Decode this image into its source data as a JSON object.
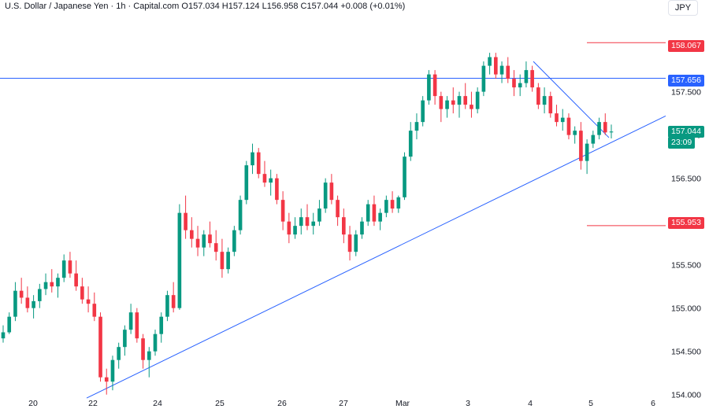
{
  "header": {
    "symbol": "U.S. Dollar / Japanese Yen · 1h · Capital.com",
    "o_label": "O",
    "open": "157.034",
    "h_label": "H",
    "high": "157.124",
    "l_label": "L",
    "low": "156.958",
    "c_label": "C",
    "close": "157.044",
    "change": "+0.008 (+0.01%)"
  },
  "currency_badge": "JPY",
  "colors": {
    "up": "#089981",
    "down": "#f23645",
    "trendline": "#2962ff",
    "hline": "#2962ff",
    "level_red": "#f23645",
    "axis_text": "#131722"
  },
  "price_labels": {
    "resistance_top": "158.067",
    "horizontal": "157.656",
    "current_price": "157.044",
    "countdown": "23:09",
    "support": "155.953"
  },
  "chart_data": {
    "type": "candlestick",
    "y_ticks": [
      "154.000",
      "154.500",
      "155.000",
      "155.500",
      "156.000",
      "156.500",
      "157.000",
      "157.500",
      "158.000"
    ],
    "ylim": [
      153.97,
      158.56
    ],
    "x_ticks": [
      "20",
      "22",
      "24",
      "25",
      "26",
      "27",
      "Mar",
      "3",
      "4",
      "5",
      "6"
    ],
    "grid": false,
    "series_ohlc": [
      [
        154.65,
        154.8,
        154.6,
        154.72
      ],
      [
        154.72,
        154.95,
        154.7,
        154.9
      ],
      [
        154.9,
        155.3,
        154.85,
        155.2
      ],
      [
        155.2,
        155.35,
        155.05,
        155.12
      ],
      [
        155.12,
        155.25,
        154.95,
        155.0
      ],
      [
        155.0,
        155.15,
        154.88,
        155.08
      ],
      [
        155.08,
        155.28,
        155.0,
        155.22
      ],
      [
        155.22,
        155.4,
        155.15,
        155.3
      ],
      [
        155.3,
        155.45,
        155.18,
        155.25
      ],
      [
        155.25,
        155.4,
        155.12,
        155.35
      ],
      [
        155.35,
        155.62,
        155.3,
        155.55
      ],
      [
        155.55,
        155.65,
        155.35,
        155.4
      ],
      [
        155.4,
        155.55,
        155.2,
        155.25
      ],
      [
        155.25,
        155.35,
        155.05,
        155.1
      ],
      [
        155.1,
        155.25,
        154.95,
        155.05
      ],
      [
        155.05,
        155.18,
        154.85,
        154.9
      ],
      [
        154.9,
        154.95,
        154.15,
        154.2
      ],
      [
        154.2,
        154.3,
        154.0,
        154.15
      ],
      [
        154.15,
        154.45,
        154.05,
        154.4
      ],
      [
        154.4,
        154.6,
        154.3,
        154.55
      ],
      [
        154.55,
        154.8,
        154.45,
        154.75
      ],
      [
        154.75,
        155.05,
        154.7,
        154.95
      ],
      [
        154.95,
        155.0,
        154.6,
        154.65
      ],
      [
        154.65,
        154.7,
        154.3,
        154.4
      ],
      [
        154.4,
        154.55,
        154.2,
        154.5
      ],
      [
        154.5,
        154.75,
        154.45,
        154.7
      ],
      [
        154.7,
        154.95,
        154.6,
        154.9
      ],
      [
        154.9,
        155.2,
        154.85,
        155.15
      ],
      [
        155.15,
        155.3,
        154.95,
        155.0
      ],
      [
        155.0,
        156.2,
        154.98,
        156.1
      ],
      [
        156.1,
        156.3,
        155.8,
        155.9
      ],
      [
        155.9,
        156.05,
        155.7,
        155.8
      ],
      [
        155.8,
        155.95,
        155.6,
        155.7
      ],
      [
        155.7,
        155.9,
        155.6,
        155.85
      ],
      [
        155.85,
        156.0,
        155.7,
        155.75
      ],
      [
        155.75,
        155.9,
        155.55,
        155.65
      ],
      [
        155.65,
        155.8,
        155.35,
        155.45
      ],
      [
        155.45,
        155.7,
        155.4,
        155.65
      ],
      [
        155.65,
        155.95,
        155.6,
        155.9
      ],
      [
        155.9,
        156.3,
        155.85,
        156.25
      ],
      [
        156.25,
        156.7,
        156.2,
        156.65
      ],
      [
        156.65,
        156.9,
        156.55,
        156.8
      ],
      [
        156.8,
        156.85,
        156.5,
        156.55
      ],
      [
        156.55,
        156.7,
        156.4,
        156.45
      ],
      [
        156.45,
        156.6,
        156.3,
        156.5
      ],
      [
        156.5,
        156.55,
        156.2,
        156.25
      ],
      [
        156.25,
        156.35,
        155.9,
        156.0
      ],
      [
        156.0,
        156.1,
        155.75,
        155.85
      ],
      [
        155.85,
        156.05,
        155.8,
        155.95
      ],
      [
        155.95,
        156.15,
        155.85,
        156.05
      ],
      [
        156.05,
        156.2,
        155.9,
        155.95
      ],
      [
        155.95,
        156.1,
        155.85,
        156.0
      ],
      [
        156.0,
        156.25,
        155.95,
        156.15
      ],
      [
        156.15,
        156.5,
        156.1,
        156.45
      ],
      [
        156.45,
        156.55,
        156.2,
        156.25
      ],
      [
        156.25,
        156.3,
        155.95,
        156.05
      ],
      [
        156.05,
        156.15,
        155.75,
        155.85
      ],
      [
        155.85,
        155.95,
        155.55,
        155.65
      ],
      [
        155.65,
        155.9,
        155.6,
        155.85
      ],
      [
        155.85,
        156.05,
        155.8,
        156.0
      ],
      [
        156.0,
        156.25,
        155.95,
        156.2
      ],
      [
        156.2,
        156.3,
        155.95,
        156.0
      ],
      [
        156.0,
        156.15,
        155.9,
        156.1
      ],
      [
        156.1,
        156.3,
        156.05,
        156.25
      ],
      [
        156.25,
        156.35,
        156.1,
        156.15
      ],
      [
        156.15,
        156.3,
        156.1,
        156.28
      ],
      [
        156.28,
        156.8,
        156.25,
        156.75
      ],
      [
        156.75,
        157.15,
        156.7,
        157.05
      ],
      [
        157.05,
        157.25,
        156.95,
        157.15
      ],
      [
        157.15,
        157.45,
        157.1,
        157.4
      ],
      [
        157.4,
        157.75,
        157.35,
        157.7
      ],
      [
        157.7,
        157.75,
        157.35,
        157.45
      ],
      [
        157.45,
        157.5,
        157.15,
        157.3
      ],
      [
        157.3,
        157.45,
        157.2,
        157.4
      ],
      [
        157.4,
        157.55,
        157.25,
        157.35
      ],
      [
        157.35,
        157.5,
        157.2,
        157.45
      ],
      [
        157.45,
        157.6,
        157.3,
        157.35
      ],
      [
        157.35,
        157.5,
        157.2,
        157.3
      ],
      [
        157.3,
        157.55,
        157.25,
        157.5
      ],
      [
        157.5,
        157.85,
        157.45,
        157.8
      ],
      [
        157.8,
        157.95,
        157.7,
        157.9
      ],
      [
        157.9,
        157.95,
        157.65,
        157.7
      ],
      [
        157.7,
        157.85,
        157.6,
        157.8
      ],
      [
        157.8,
        157.9,
        157.6,
        157.65
      ],
      [
        157.65,
        157.75,
        157.45,
        157.55
      ],
      [
        157.55,
        157.7,
        157.45,
        157.6
      ],
      [
        157.6,
        157.85,
        157.55,
        157.75
      ],
      [
        157.75,
        157.8,
        157.5,
        157.55
      ],
      [
        157.55,
        157.6,
        157.3,
        157.35
      ],
      [
        157.35,
        157.55,
        157.25,
        157.45
      ],
      [
        157.45,
        157.5,
        157.2,
        157.25
      ],
      [
        157.25,
        157.35,
        157.1,
        157.15
      ],
      [
        157.15,
        157.3,
        157.05,
        157.2
      ],
      [
        157.2,
        157.25,
        156.95,
        157.0
      ],
      [
        157.0,
        157.1,
        156.9,
        157.05
      ],
      [
        157.05,
        157.15,
        156.6,
        156.7
      ],
      [
        156.7,
        156.95,
        156.55,
        156.9
      ],
      [
        156.9,
        157.05,
        156.85,
        157.0
      ],
      [
        157.0,
        157.2,
        156.95,
        157.15
      ],
      [
        157.15,
        157.25,
        157.0,
        157.03
      ],
      [
        157.03,
        157.12,
        156.96,
        157.04
      ]
    ]
  }
}
